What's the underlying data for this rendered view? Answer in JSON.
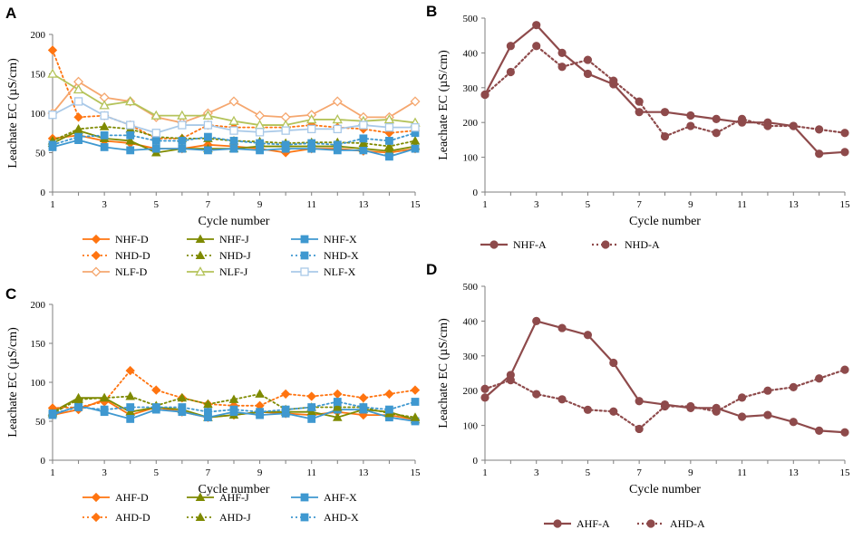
{
  "colors": {
    "D": "#FF7410",
    "J": "#7E8A00",
    "X": "#3F98D0",
    "NLF_D": "#F5A76F",
    "NLF_J": "#B4C35A",
    "NLF_X": "#A9C9E8",
    "A": "#8E4A4B"
  },
  "chart_data": [
    {
      "panel": "A",
      "type": "line",
      "xlabel": "Cycle number",
      "ylabel": "Leachate EC (µS/cm)",
      "xlim": [
        1,
        15
      ],
      "ylim": [
        0,
        200
      ],
      "xticks": [
        "1",
        "3",
        "5",
        "7",
        "9",
        "11",
        "13",
        "15"
      ],
      "yticks": [
        "0",
        "50",
        "100",
        "150",
        "200"
      ],
      "x": [
        1,
        2,
        3,
        4,
        5,
        6,
        7,
        8,
        9,
        10,
        11,
        12,
        13,
        14,
        15
      ],
      "series": [
        {
          "name": "NHF-D",
          "color": "D",
          "dash": "solid",
          "marker": "diamond",
          "values": [
            68,
            72,
            65,
            62,
            55,
            55,
            60,
            58,
            55,
            50,
            55,
            55,
            52,
            50,
            55
          ]
        },
        {
          "name": "NHF-J",
          "color": "J",
          "dash": "solid",
          "marker": "triangle",
          "values": [
            62,
            78,
            68,
            65,
            50,
            55,
            55,
            55,
            58,
            58,
            58,
            58,
            55,
            52,
            58
          ]
        },
        {
          "name": "NHF-X",
          "color": "X",
          "dash": "solid",
          "marker": "square",
          "values": [
            57,
            66,
            57,
            53,
            55,
            55,
            53,
            55,
            53,
            55,
            55,
            53,
            53,
            45,
            55
          ]
        },
        {
          "name": "NHD-D",
          "color": "D",
          "dash": "dot",
          "marker": "diamond",
          "values": [
            180,
            95,
            97,
            85,
            68,
            68,
            85,
            82,
            82,
            82,
            85,
            82,
            80,
            75,
            78
          ]
        },
        {
          "name": "NHD-J",
          "color": "J",
          "dash": "dot",
          "marker": "triangle",
          "values": [
            65,
            80,
            83,
            80,
            70,
            68,
            68,
            65,
            64,
            62,
            63,
            63,
            62,
            58,
            65
          ]
        },
        {
          "name": "NHD-X",
          "color": "X",
          "dash": "dot",
          "marker": "square",
          "values": [
            60,
            70,
            72,
            72,
            65,
            65,
            70,
            65,
            62,
            60,
            62,
            60,
            68,
            65,
            75
          ]
        },
        {
          "name": "NLF-D",
          "color": "NLF_D",
          "dash": "solid",
          "marker": "diamond-open",
          "values": [
            100,
            140,
            120,
            115,
            95,
            88,
            100,
            115,
            97,
            95,
            98,
            115,
            95,
            95,
            115
          ]
        },
        {
          "name": "NLF-J",
          "color": "NLF_J",
          "dash": "solid",
          "marker": "triangle-open",
          "values": [
            150,
            130,
            110,
            115,
            97,
            97,
            97,
            90,
            85,
            85,
            92,
            92,
            90,
            92,
            88
          ]
        },
        {
          "name": "NLF-X",
          "color": "NLF_X",
          "dash": "solid",
          "marker": "square-open",
          "values": [
            98,
            115,
            97,
            85,
            75,
            85,
            85,
            78,
            76,
            78,
            80,
            80,
            85,
            82,
            82
          ]
        }
      ],
      "legend_order": [
        "NHF-D",
        "NHF-J",
        "NHF-X",
        "NHD-D",
        "NHD-J",
        "NHD-X",
        "NLF-D",
        "NLF-J",
        "NLF-X"
      ]
    },
    {
      "panel": "B",
      "type": "line",
      "xlabel": "Cycle number",
      "ylabel": "Leachate EC (µS/cm)",
      "xlim": [
        1,
        15
      ],
      "ylim": [
        0,
        500
      ],
      "xticks": [
        "1",
        "3",
        "5",
        "7",
        "9",
        "11",
        "13",
        "15"
      ],
      "yticks": [
        "0",
        "100",
        "200",
        "300",
        "400",
        "500"
      ],
      "x": [
        1,
        2,
        3,
        4,
        5,
        6,
        7,
        8,
        9,
        10,
        11,
        12,
        13,
        14,
        15
      ],
      "series": [
        {
          "name": "NHF-A",
          "color": "A",
          "dash": "solid",
          "marker": "circle",
          "values": [
            280,
            420,
            480,
            400,
            340,
            310,
            230,
            230,
            220,
            210,
            200,
            200,
            190,
            110,
            115
          ]
        },
        {
          "name": "NHD-A",
          "color": "A",
          "dash": "dot",
          "marker": "circle",
          "values": [
            280,
            345,
            420,
            360,
            380,
            320,
            260,
            160,
            190,
            170,
            210,
            190,
            190,
            180,
            170
          ]
        }
      ],
      "legend_order": [
        "NHF-A",
        "NHD-A"
      ]
    },
    {
      "panel": "C",
      "type": "line",
      "xlabel": "Cycle number",
      "ylabel": "Leachate EC (µS/cm)",
      "xlim": [
        1,
        15
      ],
      "ylim": [
        0,
        200
      ],
      "xticks": [
        "1",
        "3",
        "5",
        "7",
        "9",
        "11",
        "13",
        "15"
      ],
      "yticks": [
        "0",
        "50",
        "100",
        "150",
        "200"
      ],
      "x": [
        1,
        2,
        3,
        4,
        5,
        6,
        7,
        8,
        9,
        10,
        11,
        12,
        13,
        14,
        15
      ],
      "series": [
        {
          "name": "AHF-D",
          "color": "D",
          "dash": "solid",
          "marker": "diamond",
          "values": [
            58,
            65,
            78,
            58,
            68,
            62,
            55,
            58,
            62,
            60,
            58,
            62,
            58,
            58,
            52
          ]
        },
        {
          "name": "AHF-J",
          "color": "J",
          "dash": "solid",
          "marker": "triangle",
          "values": [
            62,
            80,
            80,
            62,
            68,
            65,
            55,
            58,
            62,
            62,
            62,
            55,
            65,
            62,
            52
          ]
        },
        {
          "name": "AHF-X",
          "color": "X",
          "dash": "solid",
          "marker": "square",
          "values": [
            58,
            70,
            62,
            53,
            65,
            62,
            55,
            62,
            58,
            60,
            53,
            65,
            65,
            55,
            50
          ]
        },
        {
          "name": "AHD-D",
          "color": "D",
          "dash": "dot",
          "marker": "diamond",
          "values": [
            67,
            68,
            75,
            115,
            90,
            80,
            72,
            70,
            70,
            85,
            82,
            85,
            80,
            85,
            90
          ]
        },
        {
          "name": "AHD-J",
          "color": "J",
          "dash": "dot",
          "marker": "triangle",
          "values": [
            60,
            78,
            80,
            82,
            70,
            80,
            72,
            78,
            85,
            65,
            68,
            68,
            68,
            60,
            55
          ]
        },
        {
          "name": "AHD-X",
          "color": "X",
          "dash": "dot",
          "marker": "square",
          "values": [
            60,
            68,
            65,
            68,
            68,
            68,
            62,
            65,
            62,
            65,
            68,
            75,
            68,
            65,
            75
          ]
        }
      ],
      "legend_order": [
        "AHF-D",
        "AHF-J",
        "AHF-X",
        "AHD-D",
        "AHD-J",
        "AHD-X"
      ]
    },
    {
      "panel": "D",
      "type": "line",
      "xlabel": "Cycle number",
      "ylabel": "Leachate EC (µS/cm)",
      "xlim": [
        1,
        15
      ],
      "ylim": [
        0,
        500
      ],
      "xticks": [
        "1",
        "3",
        "5",
        "7",
        "9",
        "11",
        "13",
        "15"
      ],
      "yticks": [
        "0",
        "100",
        "200",
        "300",
        "400",
        "500"
      ],
      "x": [
        1,
        2,
        3,
        4,
        5,
        6,
        7,
        8,
        9,
        10,
        11,
        12,
        13,
        14,
        15
      ],
      "series": [
        {
          "name": "AHF-A",
          "color": "A",
          "dash": "solid",
          "marker": "circle",
          "values": [
            180,
            245,
            400,
            380,
            360,
            280,
            170,
            160,
            150,
            150,
            125,
            130,
            110,
            85,
            80
          ]
        },
        {
          "name": "AHD-A",
          "color": "A",
          "dash": "dot",
          "marker": "circle",
          "values": [
            205,
            230,
            190,
            175,
            145,
            140,
            90,
            155,
            155,
            140,
            180,
            200,
            210,
            235,
            260
          ]
        }
      ],
      "legend_order": [
        "AHF-A",
        "AHD-A"
      ]
    }
  ]
}
